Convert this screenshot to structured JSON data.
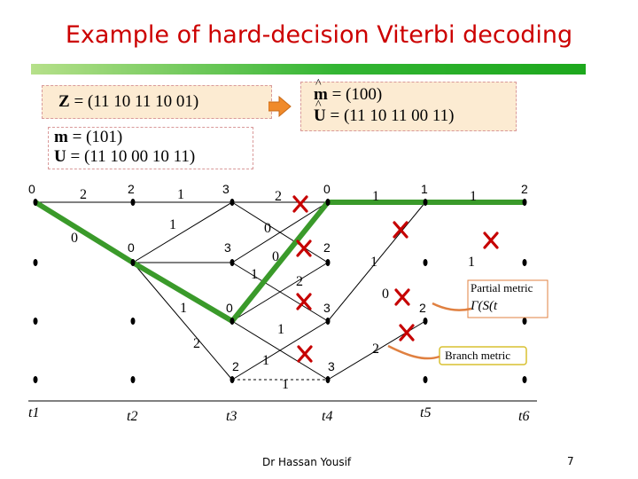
{
  "slide": {
    "title": "Example of hard-decision Viterbi decoding",
    "footer": "Dr Hassan Yousif",
    "page_number": "7"
  },
  "received": {
    "symbol": "Z",
    "equals": "=",
    "sequence": "(11 10 11 10 01)"
  },
  "decoded": {
    "message_symbol": "m",
    "message_value": "= (100)",
    "codeword_symbol": "U",
    "codeword_value": "= (11 10 11 00 11)"
  },
  "transmitted": {
    "message_symbol": "m",
    "message_value": "= (101)",
    "codeword_symbol": "U",
    "codeword_value": "= (11 10 00 10 11)"
  },
  "annotations": {
    "partial_metric": "Partial metric",
    "partial_metric_formula": "Γ(S(t",
    "branch_metric": "Branch metric"
  },
  "time_labels": [
    "t1",
    "t2",
    "t3",
    "t4",
    "t5",
    "t6"
  ],
  "node_metrics": {
    "state0": [
      "0",
      "2",
      "3",
      "0",
      "1",
      "2"
    ],
    "state1": [
      "0",
      "3",
      "2"
    ],
    "state2": [
      "0",
      "3",
      "2"
    ],
    "state3": [
      "2",
      "3"
    ]
  },
  "branch_metrics": {
    "t1_t2": [
      "2",
      "0"
    ],
    "t2_t3": [
      "1",
      "1"
    ],
    "t3_t4": [
      "2",
      "0",
      "0",
      "1",
      "2",
      "1",
      "1",
      "2",
      "1"
    ],
    "t4_t5": [
      "1",
      "1",
      "0",
      "2"
    ],
    "t5_t6": [
      "1",
      "1"
    ]
  },
  "colors": {
    "survivor_path": "#3a9a2a",
    "discard_mark": "#c60000",
    "title": "#cc0000",
    "callout": "#e08040"
  }
}
